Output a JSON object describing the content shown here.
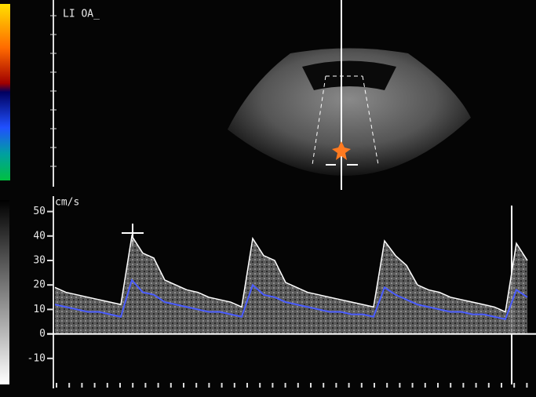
{
  "chart_data": {
    "type": "line",
    "annotation": "LI OA_",
    "y_label": "cm/s",
    "ylim": [
      -20,
      55
    ],
    "yticks": [
      50,
      40,
      30,
      20,
      10,
      0,
      -10
    ],
    "categories": [
      null,
      null,
      null,
      null,
      null,
      null,
      null,
      null,
      null,
      null,
      null,
      null,
      null,
      null,
      null,
      null,
      null,
      null,
      null,
      null,
      null,
      null,
      null,
      null,
      null,
      null,
      null,
      null,
      null,
      null,
      null,
      null,
      null,
      null,
      null,
      null,
      null,
      null,
      null,
      null,
      null,
      null,
      null,
      null
    ],
    "series": [
      {
        "color": "#ffffff",
        "values": [
          19,
          17,
          16,
          15,
          14,
          13,
          12,
          40,
          33,
          31,
          22,
          20,
          18,
          17,
          15,
          14,
          13,
          11,
          39,
          32,
          30,
          21,
          19,
          17,
          16,
          15,
          14,
          13,
          12,
          11,
          38,
          32,
          28,
          20,
          18,
          17,
          15,
          14,
          13,
          12,
          11,
          9,
          37,
          30
        ]
      },
      {
        "color": "#4a5cff",
        "values": [
          12,
          11,
          10,
          9,
          9,
          8,
          7,
          22,
          17,
          16,
          13,
          12,
          11,
          10,
          9,
          9,
          8,
          7,
          20,
          16,
          15,
          13,
          12,
          11,
          10,
          9,
          9,
          8,
          8,
          7,
          19,
          16,
          14,
          12,
          11,
          10,
          9,
          9,
          8,
          8,
          7,
          6,
          18,
          15
        ]
      }
    ]
  }
}
